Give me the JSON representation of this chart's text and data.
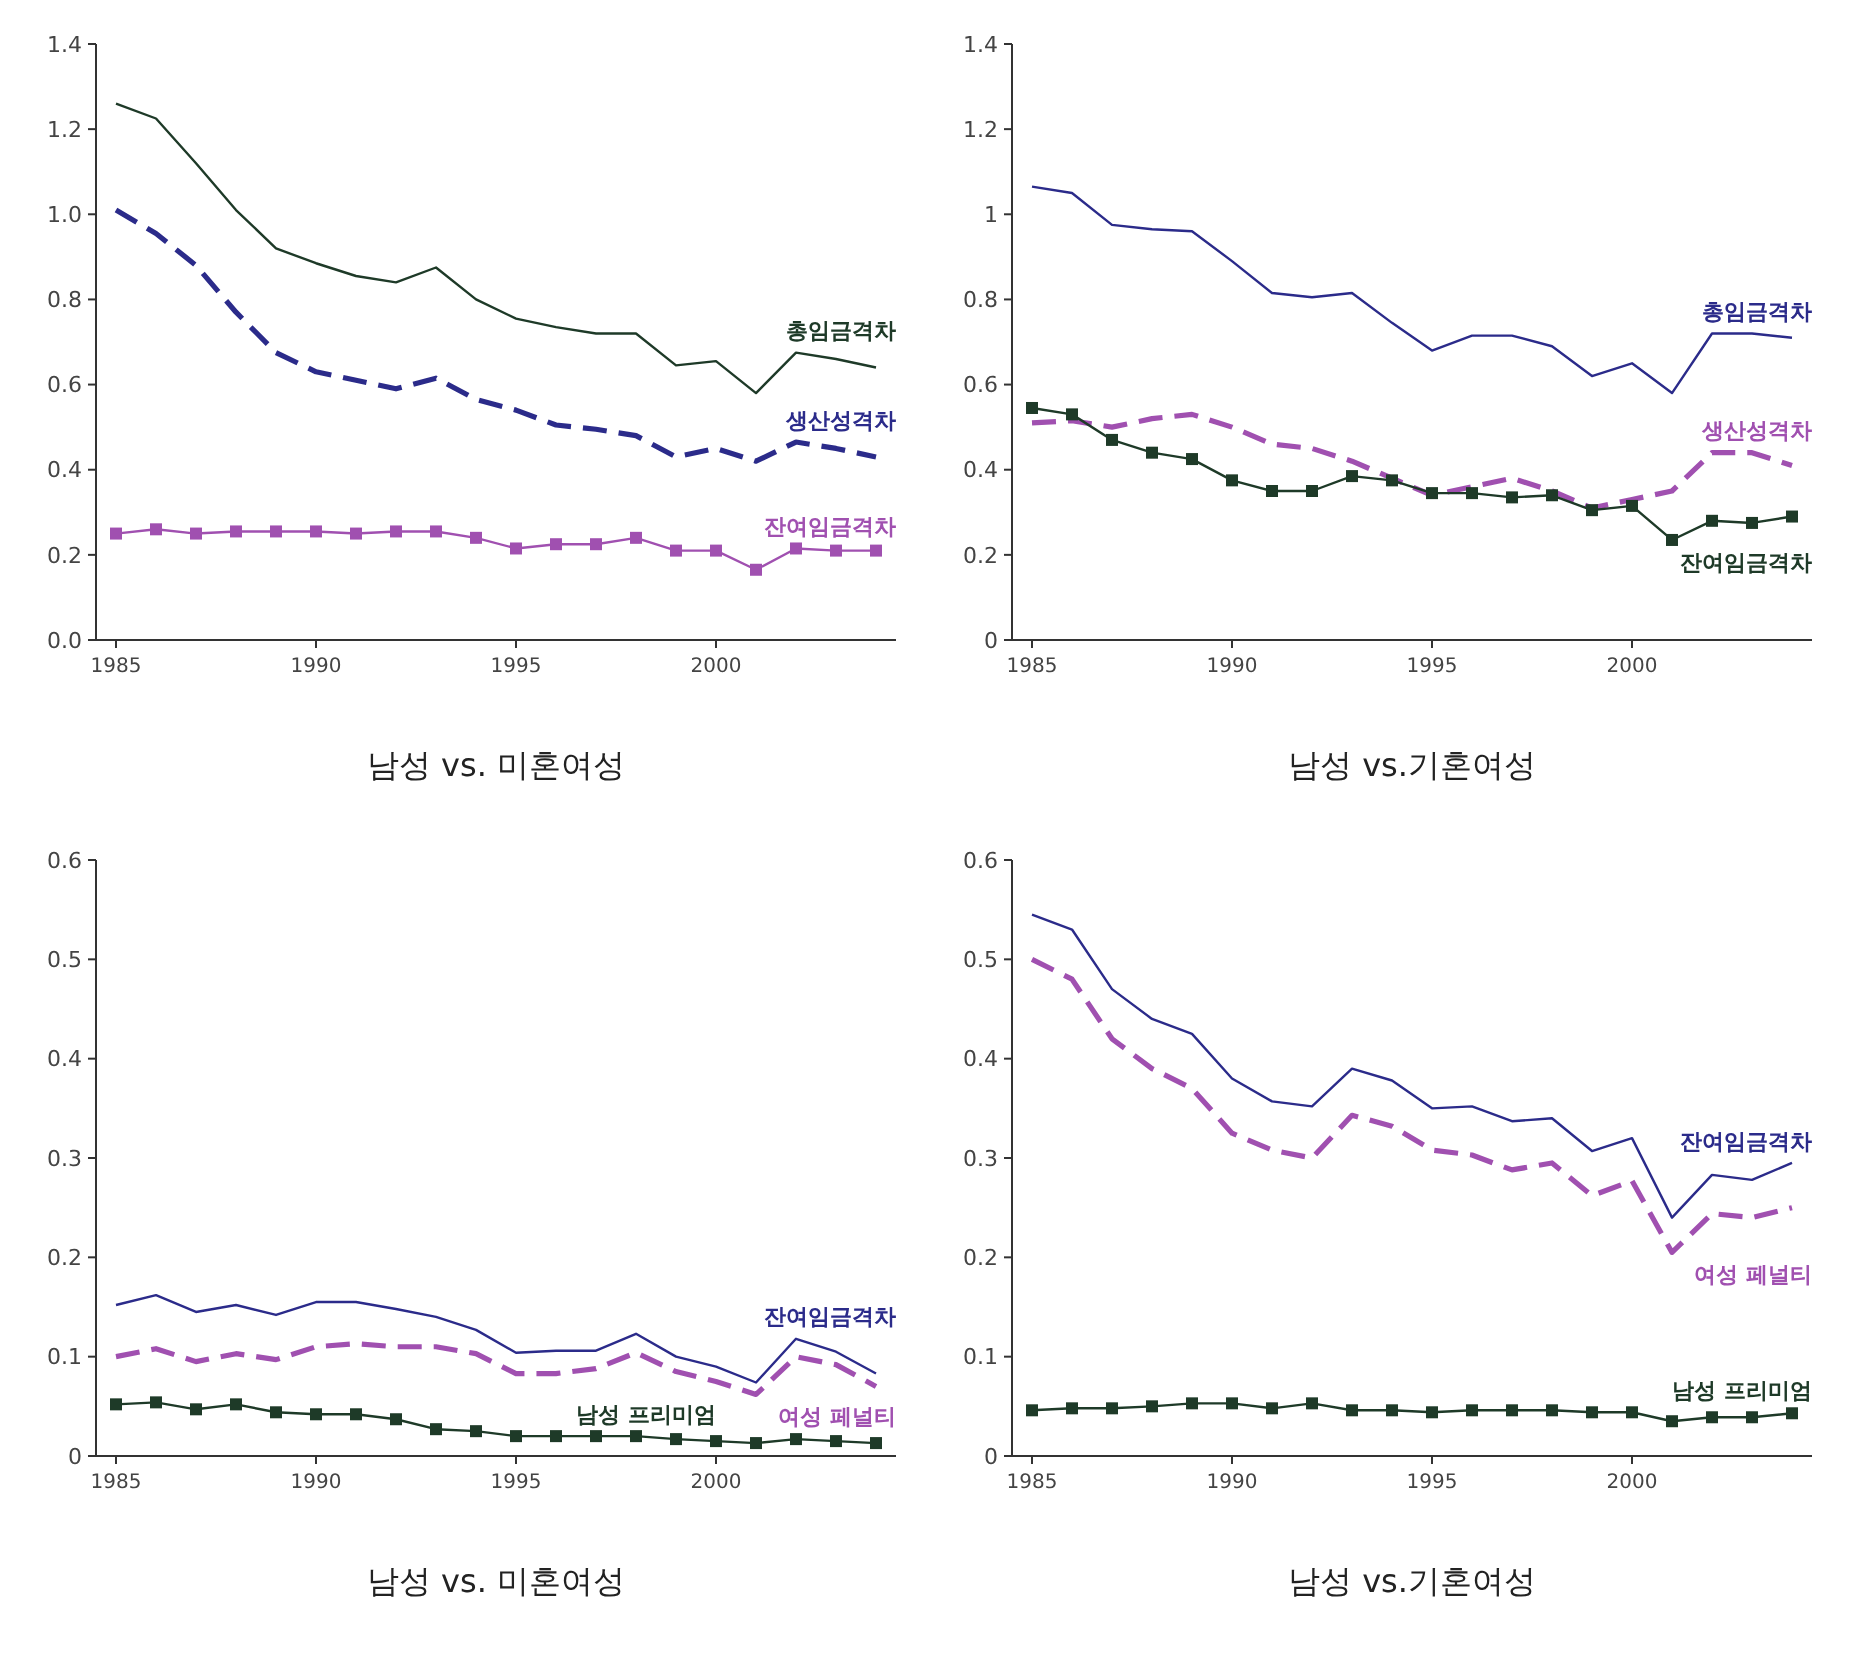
{
  "chart_data": [
    {
      "type": "line",
      "xlabel": "남성 vs. 미혼여성",
      "x": [
        1985,
        1986,
        1987,
        1988,
        1989,
        1990,
        1991,
        1992,
        1993,
        1994,
        1995,
        1996,
        1997,
        1998,
        1999,
        2000,
        2001,
        2002,
        2003,
        2004
      ],
      "xlim": [
        1984.5,
        2004.5
      ],
      "xticks": [
        1985,
        1990,
        1995,
        2000
      ],
      "ylim": [
        0,
        1.4
      ],
      "yticks": [
        {
          "value": 0,
          "label": "0.0"
        },
        0.2,
        0.4,
        0.6,
        0.8,
        {
          "value": 1,
          "label": "1.0"
        },
        1.2,
        1.4
      ],
      "series": [
        {
          "name": "총임금격차",
          "color": "#1e3a28",
          "line_style": "solid",
          "marker": "none",
          "values": [
            1.26,
            1.225,
            1.12,
            1.01,
            0.92,
            0.885,
            0.855,
            0.84,
            0.875,
            0.8,
            0.755,
            0.735,
            0.72,
            0.72,
            0.645,
            0.655,
            0.58,
            0.675,
            0.66,
            0.64
          ]
        },
        {
          "name": "생산성격차",
          "color": "#2b2b8a",
          "line_style": "dashed",
          "marker": "none",
          "values": [
            1.01,
            0.955,
            0.88,
            0.77,
            0.675,
            0.63,
            0.61,
            0.59,
            0.615,
            0.565,
            0.54,
            0.505,
            0.495,
            0.48,
            0.43,
            0.45,
            0.42,
            0.465,
            0.45,
            0.43
          ]
        },
        {
          "name": "잔여임금격차",
          "color": "#a050b0",
          "line_style": "solid",
          "marker": "square",
          "values": [
            0.25,
            0.26,
            0.25,
            0.255,
            0.255,
            0.255,
            0.25,
            0.255,
            0.255,
            0.24,
            0.215,
            0.225,
            0.225,
            0.24,
            0.21,
            0.21,
            0.165,
            0.215,
            0.21,
            0.21
          ]
        }
      ]
    },
    {
      "type": "line",
      "xlabel": "남성 vs.기혼여성",
      "x": [
        1985,
        1986,
        1987,
        1988,
        1989,
        1990,
        1991,
        1992,
        1993,
        1994,
        1995,
        1996,
        1997,
        1998,
        1999,
        2000,
        2001,
        2002,
        2003,
        2004
      ],
      "xlim": [
        1984.5,
        2004.5
      ],
      "xticks": [
        1985,
        1990,
        1995,
        2000
      ],
      "ylim": [
        0,
        1.4
      ],
      "yticks": [
        0,
        0.2,
        0.4,
        0.6,
        0.8,
        1,
        1.2,
        1.4
      ],
      "series": [
        {
          "name": "총임금격차",
          "color": "#2b2b8a",
          "line_style": "solid",
          "marker": "none",
          "values": [
            1.065,
            1.05,
            0.975,
            0.965,
            0.96,
            0.89,
            0.815,
            0.805,
            0.815,
            0.745,
            0.68,
            0.715,
            0.715,
            0.69,
            0.62,
            0.65,
            0.58,
            0.72,
            0.72,
            0.71
          ]
        },
        {
          "name": "생산성격차",
          "color": "#a050b0",
          "line_style": "dashed",
          "marker": "none",
          "values": [
            0.51,
            0.515,
            0.5,
            0.52,
            0.53,
            0.5,
            0.46,
            0.45,
            0.42,
            0.38,
            0.34,
            0.36,
            0.38,
            0.35,
            0.31,
            0.33,
            0.35,
            0.44,
            0.44,
            0.41
          ]
        },
        {
          "name": "잔여임금격차",
          "color": "#1e3a28",
          "line_style": "solid",
          "marker": "square",
          "values": [
            0.545,
            0.53,
            0.47,
            0.44,
            0.425,
            0.375,
            0.35,
            0.35,
            0.385,
            0.375,
            0.345,
            0.345,
            0.335,
            0.34,
            0.305,
            0.315,
            0.235,
            0.28,
            0.275,
            0.29
          ]
        }
      ]
    },
    {
      "type": "line",
      "xlabel": "남성 vs. 미혼여성",
      "x": [
        1985,
        1986,
        1987,
        1988,
        1989,
        1990,
        1991,
        1992,
        1993,
        1994,
        1995,
        1996,
        1997,
        1998,
        1999,
        2000,
        2001,
        2002,
        2003,
        2004
      ],
      "xlim": [
        1984.5,
        2004.5
      ],
      "xticks": [
        1985,
        1990,
        1995,
        2000
      ],
      "ylim": [
        0,
        0.6
      ],
      "yticks": [
        0,
        0.1,
        0.2,
        0.3,
        0.4,
        0.5,
        0.6
      ],
      "series": [
        {
          "name": "잔여임금격차",
          "color": "#2b2b8a",
          "line_style": "solid",
          "marker": "none",
          "values": [
            0.152,
            0.162,
            0.145,
            0.152,
            0.142,
            0.155,
            0.155,
            0.148,
            0.14,
            0.127,
            0.104,
            0.106,
            0.106,
            0.123,
            0.1,
            0.09,
            0.074,
            0.118,
            0.105,
            0.083
          ]
        },
        {
          "name": "여성 페널티",
          "color": "#a050b0",
          "line_style": "dashed",
          "marker": "none",
          "values": [
            0.1,
            0.108,
            0.095,
            0.103,
            0.097,
            0.11,
            0.113,
            0.11,
            0.11,
            0.103,
            0.083,
            0.083,
            0.088,
            0.104,
            0.085,
            0.075,
            0.062,
            0.1,
            0.092,
            0.07
          ]
        },
        {
          "name": "남성 프리미엄",
          "color": "#1e3a28",
          "line_style": "solid",
          "marker": "square",
          "values": [
            0.052,
            0.054,
            0.047,
            0.052,
            0.044,
            0.042,
            0.042,
            0.037,
            0.027,
            0.025,
            0.02,
            0.02,
            0.02,
            0.02,
            0.017,
            0.015,
            0.013,
            0.017,
            0.015,
            0.013
          ]
        }
      ]
    },
    {
      "type": "line",
      "xlabel": "남성 vs.기혼여성",
      "x": [
        1985,
        1986,
        1987,
        1988,
        1989,
        1990,
        1991,
        1992,
        1993,
        1994,
        1995,
        1996,
        1997,
        1998,
        1999,
        2000,
        2001,
        2002,
        2003,
        2004
      ],
      "xlim": [
        1984.5,
        2004.5
      ],
      "xticks": [
        1985,
        1990,
        1995,
        2000
      ],
      "ylim": [
        0,
        0.6
      ],
      "yticks": [
        0,
        0.1,
        0.2,
        0.3,
        0.4,
        0.5,
        0.6
      ],
      "series": [
        {
          "name": "잔여임금격차",
          "color": "#2b2b8a",
          "line_style": "solid",
          "marker": "none",
          "values": [
            0.545,
            0.53,
            0.47,
            0.44,
            0.425,
            0.38,
            0.357,
            0.352,
            0.39,
            0.378,
            0.35,
            0.352,
            0.337,
            0.34,
            0.307,
            0.32,
            0.24,
            0.283,
            0.278,
            0.295
          ]
        },
        {
          "name": "여성 페널티",
          "color": "#a050b0",
          "line_style": "dashed",
          "marker": "none",
          "values": [
            0.5,
            0.48,
            0.42,
            0.39,
            0.37,
            0.325,
            0.308,
            0.3,
            0.343,
            0.332,
            0.308,
            0.303,
            0.288,
            0.295,
            0.262,
            0.277,
            0.205,
            0.244,
            0.24,
            0.25
          ]
        },
        {
          "name": "남성 프리미엄",
          "color": "#1e3a28",
          "line_style": "solid",
          "marker": "square",
          "values": [
            0.046,
            0.048,
            0.048,
            0.05,
            0.053,
            0.053,
            0.048,
            0.053,
            0.046,
            0.046,
            0.044,
            0.046,
            0.046,
            0.046,
            0.044,
            0.044,
            0.035,
            0.039,
            0.039,
            0.043
          ]
        }
      ]
    }
  ]
}
